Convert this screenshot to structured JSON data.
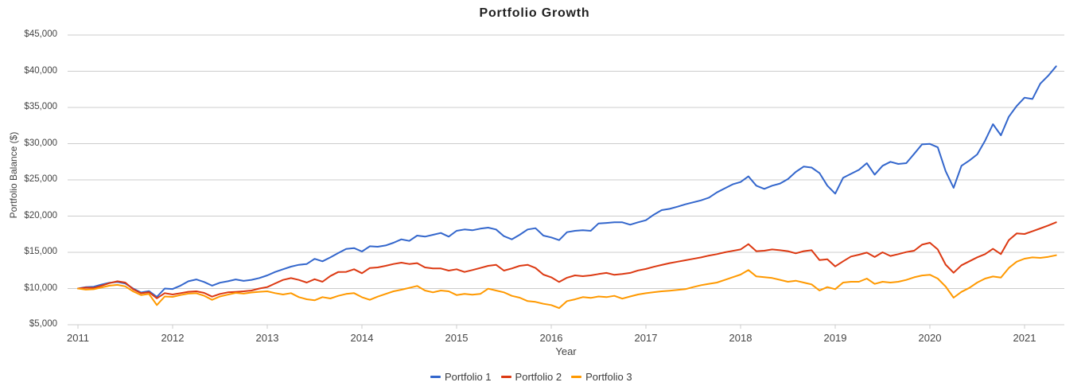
{
  "chart_data": {
    "type": "line",
    "title": "Portfolio Growth",
    "xlabel": "Year",
    "ylabel": "Portfolio Balance ($)",
    "x_start_year": 2011,
    "points_per_year": 12,
    "x_tick_labels": [
      "2011",
      "2012",
      "2013",
      "2014",
      "2015",
      "2016",
      "2017",
      "2018",
      "2019",
      "2020",
      "2021"
    ],
    "y_tick_values": [
      5000,
      10000,
      15000,
      20000,
      25000,
      30000,
      35000,
      40000,
      45000
    ],
    "y_tick_labels": [
      "$5,000",
      "$10,000",
      "$15,000",
      "$20,000",
      "$25,000",
      "$30,000",
      "$35,000",
      "$40,000",
      "$45,000"
    ],
    "ylim": [
      5000,
      45000
    ],
    "grid": "horizontal",
    "legend_position": "bottom",
    "series": [
      {
        "name": "Portfolio 1",
        "color": "#3366cc",
        "values": [
          10000,
          10200,
          10250,
          10550,
          10800,
          10900,
          10700,
          10000,
          9450,
          9650,
          8850,
          10000,
          9930,
          10400,
          11000,
          11250,
          10900,
          10400,
          10800,
          11000,
          11250,
          11050,
          11200,
          11450,
          11810,
          12290,
          12660,
          13020,
          13280,
          13385,
          14100,
          13760,
          14300,
          14900,
          15470,
          15580,
          15110,
          15840,
          15770,
          15950,
          16320,
          16790,
          16570,
          17310,
          17160,
          17420,
          17670,
          17160,
          17970,
          18150,
          18040,
          18260,
          18410,
          18150,
          17230,
          16790,
          17420,
          18150,
          18330,
          17310,
          17050,
          16680,
          17780,
          17970,
          18040,
          17970,
          18990,
          19060,
          19140,
          19140,
          18810,
          19140,
          19430,
          20200,
          20820,
          21000,
          21300,
          21630,
          21900,
          22180,
          22550,
          23280,
          23830,
          24380,
          24700,
          25480,
          24200,
          23760,
          24200,
          24490,
          25110,
          26100,
          26830,
          26700,
          25950,
          24200,
          23100,
          25290,
          25840,
          26390,
          27310,
          25730,
          26940,
          27490,
          27200,
          27310,
          28590,
          29900,
          29970,
          29500,
          26200,
          23900,
          26940,
          27670,
          28520,
          30420,
          32690,
          31150,
          33710,
          35200,
          36350,
          36170,
          38290,
          39390,
          40680
        ]
      },
      {
        "name": "Portfolio 2",
        "color": "#dc3912",
        "values": [
          10000,
          10120,
          10080,
          10400,
          10750,
          11000,
          10820,
          9900,
          9350,
          9500,
          8650,
          9360,
          9180,
          9360,
          9550,
          9620,
          9400,
          8880,
          9250,
          9470,
          9540,
          9620,
          9730,
          10000,
          10200,
          10700,
          11190,
          11440,
          11190,
          10820,
          11290,
          10930,
          11730,
          12290,
          12300,
          12660,
          12110,
          12840,
          12910,
          13130,
          13390,
          13570,
          13390,
          13500,
          12910,
          12770,
          12770,
          12470,
          12660,
          12290,
          12550,
          12840,
          13130,
          13280,
          12470,
          12770,
          13130,
          13280,
          12840,
          11920,
          11550,
          10900,
          11500,
          11815,
          11700,
          11815,
          12000,
          12150,
          11890,
          12000,
          12150,
          12500,
          12700,
          13000,
          13250,
          13500,
          13700,
          13900,
          14100,
          14300,
          14550,
          14750,
          15000,
          15200,
          15400,
          16130,
          15150,
          15220,
          15400,
          15290,
          15150,
          14860,
          15150,
          15290,
          13930,
          14040,
          13050,
          13760,
          14420,
          14670,
          14960,
          14350,
          15000,
          14500,
          14750,
          15030,
          15220,
          16060,
          16320,
          15400,
          13300,
          12180,
          13210,
          13760,
          14310,
          14750,
          15480,
          14750,
          16680,
          17600,
          17530,
          17900,
          18300,
          18700,
          19140
        ]
      },
      {
        "name": "Portfolio 3",
        "color": "#ff9900",
        "values": [
          10000,
          9850,
          9900,
          10150,
          10400,
          10500,
          10300,
          9600,
          9100,
          9250,
          7710,
          8900,
          8850,
          9100,
          9300,
          9350,
          9000,
          8440,
          8900,
          9150,
          9400,
          9300,
          9450,
          9550,
          9620,
          9360,
          9180,
          9360,
          8810,
          8520,
          8370,
          8810,
          8630,
          8990,
          9250,
          9360,
          8800,
          8440,
          8880,
          9250,
          9620,
          9840,
          10090,
          10350,
          9730,
          9470,
          9730,
          9620,
          9100,
          9250,
          9150,
          9250,
          9980,
          9730,
          9470,
          8990,
          8740,
          8260,
          8150,
          7890,
          7710,
          7300,
          8260,
          8500,
          8810,
          8700,
          8900,
          8810,
          8990,
          8600,
          8900,
          9180,
          9350,
          9500,
          9615,
          9700,
          9800,
          9910,
          10200,
          10460,
          10650,
          10820,
          11190,
          11560,
          11925,
          12550,
          11670,
          11560,
          11450,
          11200,
          10930,
          11080,
          10820,
          10570,
          9730,
          10200,
          9910,
          10820,
          10930,
          10930,
          11370,
          10640,
          10930,
          10820,
          10930,
          11190,
          11550,
          11800,
          11900,
          11370,
          10270,
          8740,
          9540,
          10090,
          10820,
          11370,
          11660,
          11520,
          12840,
          13700,
          14120,
          14300,
          14230,
          14370,
          14590
        ]
      }
    ]
  }
}
